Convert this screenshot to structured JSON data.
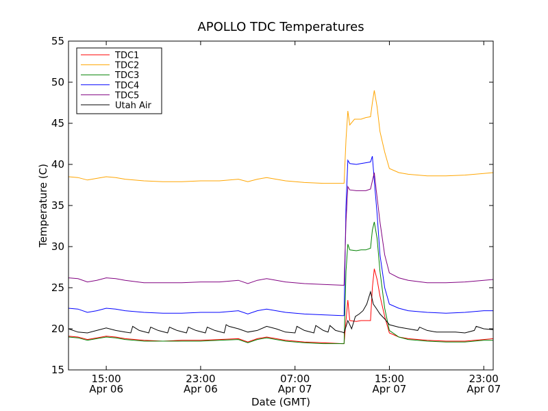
{
  "chart_data": {
    "type": "line",
    "title": "APOLLO TDC Temperatures",
    "xlabel": "Date (GMT)",
    "ylabel": "Temperature (C)",
    "xlim": [
      0,
      45
    ],
    "ylim": [
      15,
      55
    ],
    "yticks": [
      15,
      20,
      25,
      30,
      35,
      40,
      45,
      50,
      55
    ],
    "xticks": [
      {
        "x": 4,
        "line1": "15:00",
        "line2": "Apr 06"
      },
      {
        "x": 14,
        "line1": "23:00",
        "line2": "Apr 06"
      },
      {
        "x": 24,
        "line1": "07:00",
        "line2": "Apr 07"
      },
      {
        "x": 34,
        "line1": "15:00",
        "line2": "Apr 07"
      },
      {
        "x": 44,
        "line1": "23:00",
        "line2": "Apr 07"
      }
    ],
    "legend_position": "upper-left",
    "series": [
      {
        "name": "TDC1",
        "color": "#ff0000",
        "points": [
          [
            0,
            19.1
          ],
          [
            1,
            19.0
          ],
          [
            2,
            18.7
          ],
          [
            3,
            18.9
          ],
          [
            4,
            19.1
          ],
          [
            5,
            19.0
          ],
          [
            6,
            18.8
          ],
          [
            8,
            18.6
          ],
          [
            10,
            18.5
          ],
          [
            12,
            18.6
          ],
          [
            14,
            18.6
          ],
          [
            16,
            18.7
          ],
          [
            18,
            18.8
          ],
          [
            19,
            18.4
          ],
          [
            20,
            18.8
          ],
          [
            21,
            19.0
          ],
          [
            23,
            18.6
          ],
          [
            25,
            18.4
          ],
          [
            27,
            18.3
          ],
          [
            29,
            18.2
          ],
          [
            29.2,
            18.2
          ],
          [
            29.4,
            21.0
          ],
          [
            29.6,
            23.5
          ],
          [
            29.8,
            21.0
          ],
          [
            30.5,
            20.9
          ],
          [
            31,
            21.0
          ],
          [
            31.5,
            21.0
          ],
          [
            32,
            21.0
          ],
          [
            32.2,
            25.0
          ],
          [
            32.4,
            27.3
          ],
          [
            32.7,
            26.0
          ],
          [
            33,
            24.0
          ],
          [
            33.5,
            21.5
          ],
          [
            34,
            19.5
          ],
          [
            35,
            19.0
          ],
          [
            36,
            18.8
          ],
          [
            38,
            18.6
          ],
          [
            40,
            18.5
          ],
          [
            42,
            18.5
          ],
          [
            44,
            18.7
          ],
          [
            45,
            18.8
          ]
        ]
      },
      {
        "name": "TDC2",
        "color": "#ffa500",
        "points": [
          [
            0,
            38.5
          ],
          [
            1,
            38.4
          ],
          [
            2,
            38.1
          ],
          [
            3,
            38.3
          ],
          [
            4,
            38.5
          ],
          [
            5,
            38.4
          ],
          [
            6,
            38.2
          ],
          [
            8,
            38.0
          ],
          [
            10,
            37.9
          ],
          [
            12,
            37.9
          ],
          [
            14,
            38.0
          ],
          [
            16,
            38.0
          ],
          [
            18,
            38.2
          ],
          [
            19,
            37.9
          ],
          [
            20,
            38.2
          ],
          [
            21,
            38.4
          ],
          [
            23,
            38.0
          ],
          [
            25,
            37.8
          ],
          [
            27,
            37.7
          ],
          [
            29,
            37.7
          ],
          [
            29.2,
            37.7
          ],
          [
            29.4,
            43.0
          ],
          [
            29.6,
            46.5
          ],
          [
            29.8,
            44.8
          ],
          [
            30.3,
            45.5
          ],
          [
            31,
            45.5
          ],
          [
            31.5,
            45.7
          ],
          [
            32,
            45.8
          ],
          [
            32.2,
            47.5
          ],
          [
            32.4,
            49.0
          ],
          [
            32.7,
            47.0
          ],
          [
            33,
            44.0
          ],
          [
            33.5,
            41.5
          ],
          [
            34,
            39.5
          ],
          [
            35,
            39.0
          ],
          [
            36,
            38.8
          ],
          [
            38,
            38.6
          ],
          [
            40,
            38.6
          ],
          [
            42,
            38.7
          ],
          [
            44,
            38.9
          ],
          [
            45,
            39.0
          ]
        ]
      },
      {
        "name": "TDC3",
        "color": "#008000",
        "points": [
          [
            0,
            19.0
          ],
          [
            1,
            18.9
          ],
          [
            2,
            18.6
          ],
          [
            3,
            18.8
          ],
          [
            4,
            19.0
          ],
          [
            5,
            18.9
          ],
          [
            6,
            18.7
          ],
          [
            8,
            18.5
          ],
          [
            10,
            18.5
          ],
          [
            12,
            18.5
          ],
          [
            14,
            18.5
          ],
          [
            16,
            18.6
          ],
          [
            18,
            18.7
          ],
          [
            19,
            18.3
          ],
          [
            20,
            18.7
          ],
          [
            21,
            18.9
          ],
          [
            23,
            18.5
          ],
          [
            25,
            18.3
          ],
          [
            27,
            18.2
          ],
          [
            29,
            18.2
          ],
          [
            29.2,
            18.2
          ],
          [
            29.4,
            27.0
          ],
          [
            29.6,
            30.3
          ],
          [
            29.8,
            29.6
          ],
          [
            30.5,
            29.5
          ],
          [
            31,
            29.6
          ],
          [
            31.5,
            29.6
          ],
          [
            32,
            29.8
          ],
          [
            32.2,
            32.0
          ],
          [
            32.4,
            33.0
          ],
          [
            32.7,
            31.0
          ],
          [
            33,
            27.0
          ],
          [
            33.5,
            22.5
          ],
          [
            34,
            19.8
          ],
          [
            35,
            19.0
          ],
          [
            36,
            18.7
          ],
          [
            38,
            18.5
          ],
          [
            40,
            18.4
          ],
          [
            42,
            18.4
          ],
          [
            44,
            18.6
          ],
          [
            45,
            18.6
          ]
        ]
      },
      {
        "name": "TDC4",
        "color": "#0000ff",
        "points": [
          [
            0,
            22.5
          ],
          [
            1,
            22.4
          ],
          [
            2,
            22.0
          ],
          [
            3,
            22.2
          ],
          [
            4,
            22.5
          ],
          [
            5,
            22.4
          ],
          [
            6,
            22.2
          ],
          [
            8,
            22.0
          ],
          [
            10,
            21.9
          ],
          [
            12,
            21.9
          ],
          [
            14,
            22.0
          ],
          [
            16,
            22.0
          ],
          [
            18,
            22.2
          ],
          [
            19,
            21.8
          ],
          [
            20,
            22.2
          ],
          [
            21,
            22.4
          ],
          [
            23,
            22.0
          ],
          [
            25,
            21.8
          ],
          [
            27,
            21.7
          ],
          [
            29,
            21.6
          ],
          [
            29.2,
            21.6
          ],
          [
            29.4,
            35.0
          ],
          [
            29.6,
            40.5
          ],
          [
            29.8,
            40.1
          ],
          [
            30.5,
            40.0
          ],
          [
            31,
            40.1
          ],
          [
            31.5,
            40.2
          ],
          [
            32,
            40.3
          ],
          [
            32.2,
            41.0
          ],
          [
            32.4,
            38.0
          ],
          [
            32.7,
            34.0
          ],
          [
            33,
            29.0
          ],
          [
            33.5,
            25.0
          ],
          [
            34,
            23.0
          ],
          [
            35,
            22.5
          ],
          [
            36,
            22.2
          ],
          [
            38,
            22.0
          ],
          [
            40,
            21.9
          ],
          [
            42,
            22.0
          ],
          [
            44,
            22.2
          ],
          [
            45,
            22.2
          ]
        ]
      },
      {
        "name": "TDC5",
        "color": "#800080",
        "points": [
          [
            0,
            26.2
          ],
          [
            1,
            26.1
          ],
          [
            2,
            25.7
          ],
          [
            3,
            25.9
          ],
          [
            4,
            26.2
          ],
          [
            5,
            26.1
          ],
          [
            6,
            25.9
          ],
          [
            8,
            25.6
          ],
          [
            10,
            25.6
          ],
          [
            12,
            25.6
          ],
          [
            14,
            25.7
          ],
          [
            16,
            25.7
          ],
          [
            18,
            25.9
          ],
          [
            19,
            25.5
          ],
          [
            20,
            25.9
          ],
          [
            21,
            26.1
          ],
          [
            23,
            25.7
          ],
          [
            25,
            25.5
          ],
          [
            27,
            25.4
          ],
          [
            29,
            25.3
          ],
          [
            29.2,
            25.3
          ],
          [
            29.4,
            33.0
          ],
          [
            29.6,
            37.3
          ],
          [
            29.8,
            36.9
          ],
          [
            30.5,
            36.8
          ],
          [
            31,
            36.8
          ],
          [
            31.5,
            36.8
          ],
          [
            32,
            37.0
          ],
          [
            32.2,
            38.0
          ],
          [
            32.4,
            39.0
          ],
          [
            32.7,
            36.0
          ],
          [
            33,
            33.0
          ],
          [
            33.5,
            29.0
          ],
          [
            34,
            26.8
          ],
          [
            35,
            26.2
          ],
          [
            36,
            25.9
          ],
          [
            38,
            25.6
          ],
          [
            40,
            25.6
          ],
          [
            42,
            25.7
          ],
          [
            44,
            25.9
          ],
          [
            45,
            26.0
          ]
        ]
      },
      {
        "name": "Utah Air",
        "color": "#000000",
        "points": [
          [
            0,
            20.0
          ],
          [
            1,
            19.6
          ],
          [
            2,
            19.5
          ],
          [
            3,
            19.8
          ],
          [
            4,
            20.1
          ],
          [
            5,
            19.8
          ],
          [
            6,
            19.6
          ],
          [
            6.6,
            19.5
          ],
          [
            6.8,
            20.3
          ],
          [
            7.5,
            19.8
          ],
          [
            8.5,
            19.5
          ],
          [
            8.7,
            20.2
          ],
          [
            9.5,
            19.8
          ],
          [
            10.5,
            19.5
          ],
          [
            10.7,
            20.2
          ],
          [
            11.5,
            19.8
          ],
          [
            12.5,
            19.5
          ],
          [
            12.7,
            20.2
          ],
          [
            13.5,
            19.8
          ],
          [
            14.5,
            19.5
          ],
          [
            14.7,
            20.2
          ],
          [
            15.5,
            19.8
          ],
          [
            16.5,
            19.5
          ],
          [
            16.7,
            20.5
          ],
          [
            17,
            20.3
          ],
          [
            18,
            20.0
          ],
          [
            19,
            19.6
          ],
          [
            20,
            19.8
          ],
          [
            21,
            20.3
          ],
          [
            22,
            20.0
          ],
          [
            23,
            19.6
          ],
          [
            24,
            19.5
          ],
          [
            24.2,
            20.3
          ],
          [
            25,
            19.8
          ],
          [
            26,
            19.5
          ],
          [
            26.2,
            20.4
          ],
          [
            27,
            19.8
          ],
          [
            27.5,
            19.6
          ],
          [
            27.7,
            20.4
          ],
          [
            28.3,
            19.8
          ],
          [
            29,
            19.6
          ],
          [
            29.2,
            19.5
          ],
          [
            29.6,
            21.0
          ],
          [
            30.0,
            20.0
          ],
          [
            30.4,
            21.5
          ],
          [
            30.8,
            21.8
          ],
          [
            31.2,
            22.2
          ],
          [
            31.6,
            23.0
          ],
          [
            32.0,
            24.5
          ],
          [
            32.3,
            23.0
          ],
          [
            32.6,
            22.5
          ],
          [
            33.0,
            21.8
          ],
          [
            33.5,
            21.2
          ],
          [
            34,
            20.5
          ],
          [
            35,
            20.2
          ],
          [
            36,
            20.0
          ],
          [
            37,
            19.8
          ],
          [
            37.2,
            20.2
          ],
          [
            38,
            19.8
          ],
          [
            39,
            19.6
          ],
          [
            40,
            19.6
          ],
          [
            41,
            19.6
          ],
          [
            42,
            19.5
          ],
          [
            43,
            19.8
          ],
          [
            43.2,
            20.3
          ],
          [
            44,
            20.0
          ],
          [
            45,
            19.9
          ]
        ]
      }
    ]
  }
}
